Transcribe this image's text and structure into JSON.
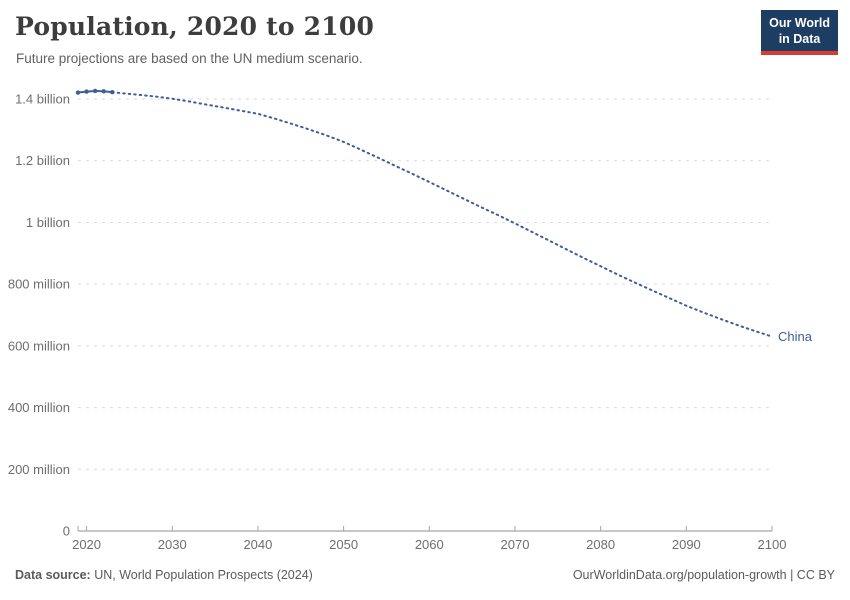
{
  "header": {
    "title": "Population, 2020 to 2100",
    "subtitle": "Future projections are based on the UN medium scenario."
  },
  "logo": {
    "line1": "Our World",
    "line2": "in Data",
    "bg": "#1d3d63",
    "accent": "#d93a34"
  },
  "chart_data": {
    "type": "line",
    "title": "Population, 2020 to 2100",
    "unit": "people (millions)",
    "xlim": [
      2019,
      2100
    ],
    "ylim": [
      0,
      1400
    ],
    "grid": "horizontal-dashed",
    "x_ticks": [
      2020,
      2030,
      2040,
      2050,
      2060,
      2070,
      2080,
      2090,
      2100
    ],
    "y_ticks": [
      {
        "value": 0,
        "label": "0"
      },
      {
        "value": 200,
        "label": "200 million"
      },
      {
        "value": 400,
        "label": "400 million"
      },
      {
        "value": 600,
        "label": "600 million"
      },
      {
        "value": 800,
        "label": "800 million"
      },
      {
        "value": 1000,
        "label": "1 billion"
      },
      {
        "value": 1200,
        "label": "1.2 billion"
      },
      {
        "value": 1400,
        "label": "1.4 billion"
      }
    ],
    "series": [
      {
        "name": "China",
        "color": "#3d5e9c",
        "historical": {
          "x": [
            2019,
            2020,
            2021,
            2022,
            2023
          ],
          "y": [
            1421,
            1424,
            1426,
            1425,
            1422
          ]
        },
        "projection": {
          "x": [
            2023,
            2024,
            2026,
            2028,
            2030,
            2032,
            2034,
            2036,
            2038,
            2040,
            2042,
            2044,
            2046,
            2048,
            2050,
            2052,
            2054,
            2056,
            2058,
            2060,
            2062,
            2064,
            2066,
            2068,
            2070,
            2072,
            2074,
            2076,
            2078,
            2080,
            2082,
            2084,
            2086,
            2088,
            2090,
            2092,
            2094,
            2096,
            2098,
            2100
          ],
          "y": [
            1422,
            1419,
            1414,
            1408,
            1401,
            1392,
            1382,
            1372,
            1362,
            1352,
            1336,
            1319,
            1301,
            1282,
            1261,
            1236,
            1210,
            1184,
            1158,
            1131,
            1104,
            1077,
            1050,
            1024,
            997,
            969,
            941,
            913,
            885,
            858,
            831,
            805,
            780,
            755,
            730,
            708,
            687,
            667,
            648,
            630
          ]
        }
      }
    ],
    "colors": {
      "grid": "#d9d9d9",
      "axis": "#8f8f8f",
      "tick": "#a6a6a6",
      "tick_label": "#6e6e6e"
    }
  },
  "footer": {
    "source_label": "Data source:",
    "source_text": " UN, World Population Prospects (2024)",
    "link_text": "OurWorldinData.org/population-growth | CC BY"
  }
}
